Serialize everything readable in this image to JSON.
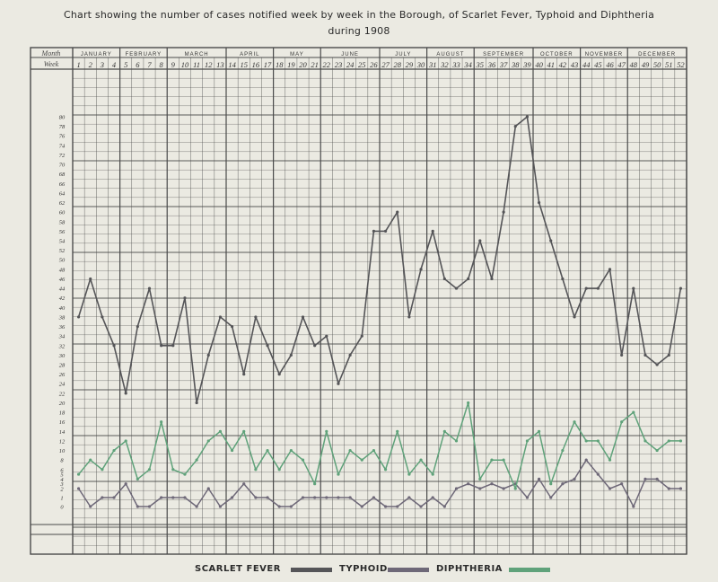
{
  "title_line1": "Chart showing the number of cases notified week by week in the Borough, of Scarlet Fever, Typhoid and Diphtheria",
  "title_line2": "during 1908",
  "chart_data": {
    "type": "line",
    "row_header_month": "Month",
    "row_header_week": "Week",
    "months": [
      "JANUARY",
      "FEBRUARY",
      "MARCH",
      "APRIL",
      "MAY",
      "JUNE",
      "JULY",
      "AUGUST",
      "SEPTEMBER",
      "OCTOBER",
      "NOVEMBER",
      "DECEMBER"
    ],
    "month_week_counts": [
      4,
      4,
      5,
      4,
      4,
      5,
      4,
      4,
      5,
      4,
      4,
      5
    ],
    "x": [
      1,
      2,
      3,
      4,
      5,
      6,
      7,
      8,
      9,
      10,
      11,
      12,
      13,
      14,
      15,
      16,
      17,
      18,
      19,
      20,
      21,
      22,
      23,
      24,
      25,
      26,
      27,
      28,
      29,
      30,
      31,
      32,
      33,
      34,
      35,
      36,
      37,
      38,
      39,
      40,
      41,
      42,
      43,
      44,
      45,
      46,
      47,
      48,
      49,
      50,
      51,
      52
    ],
    "xlabel": "Week",
    "y_ticks": [
      0,
      1,
      2,
      3,
      4,
      5,
      6,
      8,
      10,
      12,
      14,
      16,
      18,
      20,
      22,
      24,
      26,
      28,
      30,
      32,
      34,
      36,
      38,
      40,
      42,
      44,
      46,
      48,
      50,
      52,
      54,
      56,
      58,
      60,
      62,
      64,
      66,
      68,
      70,
      72,
      74,
      76,
      78,
      80
    ],
    "ylim": [
      0,
      80
    ],
    "grid": true,
    "legend_position": "bottom",
    "series": [
      {
        "name": "SCARLET FEVER",
        "color": "#555558",
        "values": [
          38,
          46,
          38,
          32,
          22,
          36,
          44,
          32,
          32,
          42,
          20,
          30,
          38,
          36,
          26,
          38,
          32,
          26,
          30,
          38,
          32,
          34,
          24,
          30,
          34,
          56,
          56,
          60,
          38,
          48,
          56,
          46,
          44,
          46,
          54,
          46,
          60,
          78,
          80,
          62,
          54,
          46,
          38,
          44,
          44,
          48,
          30,
          44,
          30,
          28,
          30,
          44
        ]
      },
      {
        "name": "TYPHOID",
        "color": "#6e6878",
        "values": [
          2,
          0,
          1,
          1,
          3,
          0,
          0,
          1,
          1,
          1,
          0,
          2,
          0,
          1,
          3,
          1,
          1,
          0,
          0,
          1,
          1,
          1,
          1,
          1,
          0,
          1,
          0,
          0,
          1,
          0,
          1,
          0,
          2,
          3,
          2,
          3,
          2,
          3,
          1,
          4,
          1,
          3,
          4,
          8,
          5,
          2,
          3,
          0,
          4,
          4,
          2,
          2
        ]
      },
      {
        "name": "DIPHTHERIA",
        "color": "#5fa27a",
        "values": [
          5,
          8,
          6,
          10,
          12,
          4,
          6,
          16,
          6,
          5,
          8,
          12,
          14,
          10,
          14,
          6,
          10,
          6,
          10,
          8,
          3,
          14,
          5,
          10,
          8,
          10,
          6,
          14,
          5,
          8,
          5,
          14,
          12,
          20,
          4,
          8,
          8,
          2,
          12,
          14,
          3,
          10,
          16,
          12,
          12,
          8,
          16,
          18,
          12,
          10,
          12,
          12
        ]
      }
    ]
  }
}
